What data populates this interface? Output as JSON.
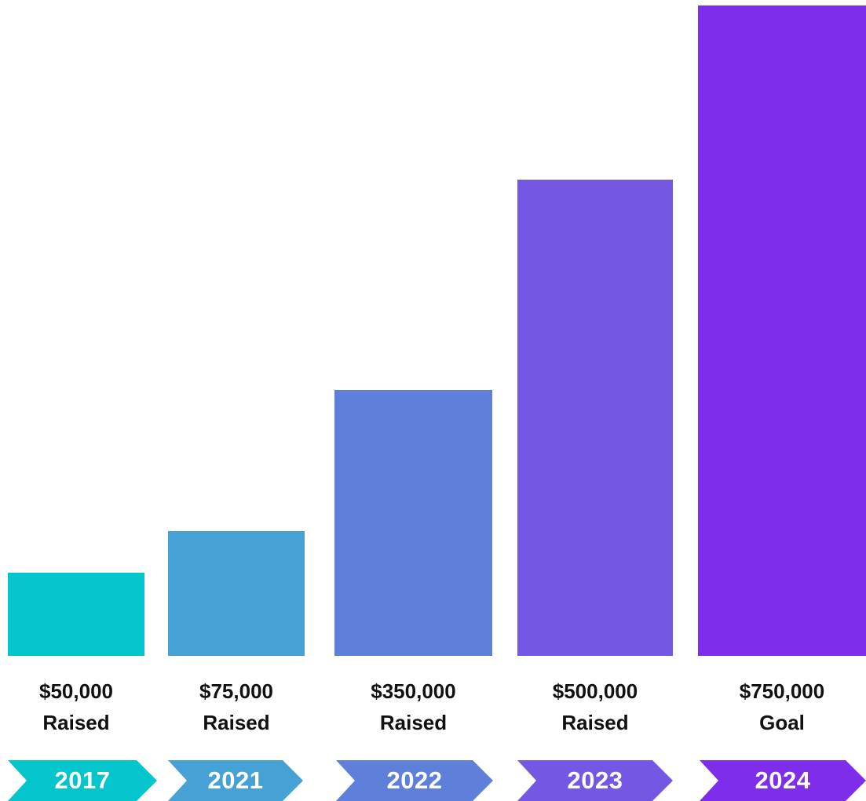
{
  "chart_data": {
    "type": "bar",
    "categories": [
      "2017",
      "2021",
      "2022",
      "2023",
      "2024"
    ],
    "values": [
      50000,
      75000,
      350000,
      500000,
      750000
    ],
    "amount_labels": [
      "$50,000",
      "$75,000",
      "$350,000",
      "$500,000",
      "$750,000"
    ],
    "status_labels": [
      "Raised",
      "Raised",
      "Raised",
      "Raised",
      "Goal"
    ],
    "colors": [
      "#05C5CC",
      "#46A1D4",
      "#5E80DB",
      "#7457E3",
      "#7E2EEA"
    ],
    "title": "",
    "xlabel": "",
    "ylabel": "",
    "grid": false,
    "legend": "none"
  }
}
